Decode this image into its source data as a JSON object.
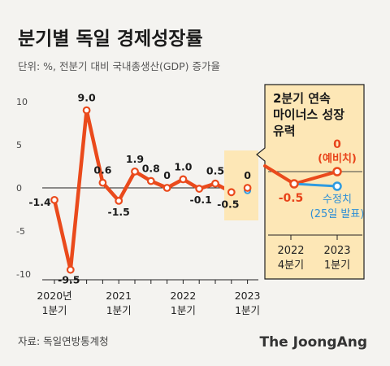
{
  "chart_data": {
    "type": "line",
    "title": "분기별 독일 경제성장률",
    "subtitle": "단위: %, 전분기 대비 국내총생산(GDP) 증가율",
    "ylim": [
      -10,
      10
    ],
    "yticks": [
      10,
      5,
      0,
      -5,
      -10
    ],
    "ytick_labels": [
      "10",
      "5",
      "0",
      "-5",
      "-10"
    ],
    "x": [
      "2020년 1분기",
      "2020년 2분기",
      "2020년 3분기",
      "2020년 4분기",
      "2021년 1분기",
      "2021년 2분기",
      "2021년 3분기",
      "2021년 4분기",
      "2022년 1분기",
      "2022년 2분기",
      "2022년 3분기",
      "2022년 4분기",
      "2023년 1분기"
    ],
    "x_tick_labels": [
      {
        "year": "2020년",
        "quarter": "1분기",
        "index": 0
      },
      {
        "year": "2021",
        "quarter": "1분기",
        "index": 4
      },
      {
        "year": "2022",
        "quarter": "1분기",
        "index": 8
      },
      {
        "year": "2023",
        "quarter": "1분기",
        "index": 12
      }
    ],
    "series": [
      {
        "values": [
          -1.4,
          -9.5,
          9.0,
          0.6,
          -1.5,
          1.9,
          0.8,
          0,
          1.0,
          -0.1,
          0.5,
          -0.5,
          0
        ],
        "labels": [
          "-1.4",
          "-9.5",
          "9.0",
          "0.6",
          "-1.5",
          "1.9",
          "0.8",
          "0",
          "1.0",
          "-0.1",
          "0.5",
          "-0.5",
          "0"
        ]
      }
    ],
    "revised": {
      "index": 12,
      "value": -0.3
    },
    "grid": false,
    "colors": {
      "line": "#ea4a1c",
      "revised": "#2f9be0",
      "callout_bg": "#fde7b6"
    }
  },
  "callout": {
    "title_lines": [
      "2분기 연속",
      "마이너스 성장",
      "유력"
    ],
    "prelim_value": "0",
    "prelim_label": "(예비치)",
    "q4_value": "-0.5",
    "revised_label": "수정치",
    "revised_date": "(25일 발표)",
    "x_labels": [
      {
        "year": "2022",
        "quarter": "4분기"
      },
      {
        "year": "2023",
        "quarter": "1분기"
      }
    ]
  },
  "source": "자료: 독일연방통계청",
  "brand": "The JoongAng"
}
